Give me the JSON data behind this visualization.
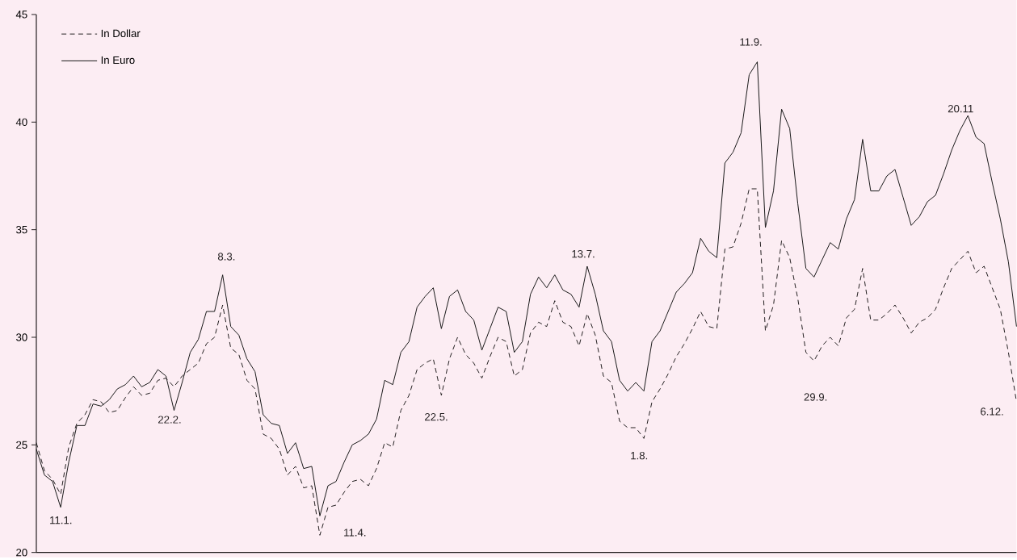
{
  "chart_data": {
    "type": "line",
    "categories": [
      null,
      null,
      null,
      null,
      null,
      null,
      null,
      null,
      null,
      null,
      null,
      null,
      null,
      null,
      null,
      null,
      null,
      null,
      null,
      null,
      null,
      null,
      null,
      null,
      null,
      null,
      null,
      null,
      null,
      null,
      null,
      null,
      null,
      null,
      null,
      null,
      null,
      null,
      null,
      null,
      null,
      null,
      null,
      null,
      null,
      null,
      null,
      null,
      null,
      null,
      null,
      null,
      null,
      null,
      null,
      null,
      null,
      null,
      null,
      null,
      null,
      null,
      null,
      null,
      null,
      null,
      null,
      null,
      null,
      null,
      null,
      null,
      null,
      null,
      null,
      null,
      null,
      null,
      null,
      null,
      null,
      null,
      null,
      null,
      null,
      null,
      null,
      null,
      null,
      null,
      null,
      null,
      null,
      null,
      null,
      null,
      null,
      null,
      null,
      null,
      null,
      null,
      null,
      null,
      null,
      null,
      null,
      null,
      null,
      null,
      null,
      null,
      null,
      null,
      null,
      null,
      null,
      null,
      null,
      null,
      null,
      null
    ],
    "series": [
      {
        "name": "In Dollar",
        "color": "#231f20",
        "line_style": "dashed",
        "values": [
          25.1,
          23.8,
          23.4,
          22.7,
          24.9,
          26.0,
          26.4,
          27.1,
          27.0,
          26.5,
          26.6,
          27.2,
          27.7,
          27.3,
          27.4,
          28.0,
          28.1,
          27.7,
          28.2,
          28.5,
          28.8,
          29.7,
          30.0,
          31.5,
          29.5,
          29.2,
          28.0,
          27.6,
          25.5,
          25.3,
          24.8,
          23.6,
          24.0,
          23.0,
          23.1,
          20.8,
          22.1,
          22.2,
          22.8,
          23.3,
          23.4,
          23.1,
          23.9,
          25.1,
          24.9,
          26.6,
          27.3,
          28.5,
          28.8,
          29.0,
          27.3,
          29.0,
          30.0,
          29.2,
          28.8,
          28.1,
          29.1,
          30.0,
          29.8,
          28.2,
          28.5,
          30.2,
          30.7,
          30.5,
          31.7,
          30.7,
          30.5,
          29.6,
          31.1,
          30.1,
          28.2,
          27.9,
          26.1,
          25.8,
          25.8,
          25.3,
          27.0,
          27.6,
          28.3,
          29.1,
          29.7,
          30.4,
          31.2,
          30.5,
          30.4,
          34.1,
          34.2,
          35.3,
          36.9,
          36.9,
          30.3,
          31.5,
          34.5,
          33.7,
          31.8,
          29.3,
          28.9,
          29.6,
          30.0,
          29.6,
          30.9,
          31.3,
          33.2,
          30.8,
          30.8,
          31.1,
          31.5,
          30.9,
          30.2,
          30.7,
          30.9,
          31.3,
          32.3,
          33.2,
          33.6,
          34.0,
          33.0,
          33.3,
          32.3,
          31.3,
          29.3,
          27.0
        ]
      },
      {
        "name": "In Euro",
        "color": "#1a1a1a",
        "line_style": "solid",
        "values": [
          24.8,
          23.6,
          23.3,
          22.1,
          24.2,
          25.9,
          25.9,
          26.9,
          26.8,
          27.1,
          27.6,
          27.8,
          28.2,
          27.7,
          27.9,
          28.5,
          28.2,
          26.6,
          27.9,
          29.3,
          29.9,
          31.2,
          31.2,
          32.9,
          30.5,
          30.1,
          29.0,
          28.4,
          26.4,
          26.0,
          25.9,
          24.6,
          25.1,
          23.9,
          24.0,
          21.7,
          23.1,
          23.3,
          24.2,
          25.0,
          25.2,
          25.5,
          26.2,
          28.0,
          27.8,
          29.3,
          29.8,
          31.4,
          31.9,
          32.3,
          30.4,
          31.9,
          32.2,
          31.2,
          30.8,
          29.4,
          30.4,
          31.4,
          31.2,
          29.3,
          29.8,
          32.0,
          32.8,
          32.3,
          32.9,
          32.2,
          32.0,
          31.4,
          33.3,
          32.0,
          30.3,
          29.8,
          28.0,
          27.5,
          27.9,
          27.5,
          29.8,
          30.3,
          31.2,
          32.1,
          32.5,
          33.0,
          34.6,
          34.0,
          33.7,
          38.1,
          38.6,
          39.5,
          42.2,
          42.8,
          35.1,
          36.8,
          40.6,
          39.7,
          36.2,
          33.2,
          32.8,
          33.6,
          34.4,
          34.1,
          35.5,
          36.4,
          39.2,
          36.8,
          36.8,
          37.5,
          37.8,
          36.5,
          35.2,
          35.6,
          36.3,
          36.6,
          37.6,
          38.7,
          39.6,
          40.3,
          39.3,
          39.0,
          37.2,
          35.5,
          33.5,
          30.5
        ]
      }
    ],
    "ylim": [
      20,
      45
    ],
    "yticks": [
      20,
      25,
      30,
      35,
      40,
      45
    ],
    "marker": "none",
    "legend": "top left",
    "annotations": [
      "11.1.",
      "22.2.",
      "8.3.",
      "11.4.",
      "22.5.",
      "13.7.",
      "1.8.",
      "11.9.",
      "29.9.",
      "20.11",
      "6.12."
    ]
  }
}
